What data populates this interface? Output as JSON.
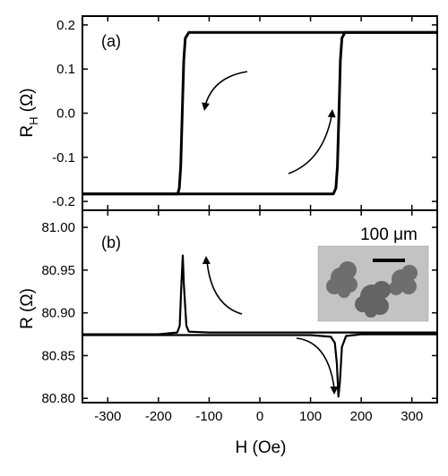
{
  "chart_data": [
    {
      "type": "line",
      "panel_label": "(a)",
      "ylabel": "R",
      "ylabel_sub": "H",
      "ylabel_unit": " (Ω)",
      "xlim": [
        -350,
        350
      ],
      "ylim": [
        -0.22,
        0.22
      ],
      "yticks": [
        -0.2,
        -0.1,
        0.0,
        0.1,
        0.2
      ],
      "ytick_labels": [
        "-0.2",
        "-0.1",
        "0.0",
        "0.1",
        "0.2"
      ],
      "grid": false,
      "series": [
        {
          "values_desc": "descending sweep",
          "x": [
            350,
            -140,
            -147,
            -150,
            -153,
            -156,
            -159,
            -162,
            -350
          ],
          "y": [
            0.183,
            0.183,
            0.17,
            0.12,
            0.0,
            -0.12,
            -0.17,
            -0.183,
            -0.183
          ]
        },
        {
          "values_desc": "ascending sweep",
          "x": [
            -350,
            145,
            150,
            153,
            156,
            159,
            162,
            168,
            350
          ],
          "y": [
            -0.183,
            -0.183,
            -0.17,
            -0.12,
            0.0,
            0.12,
            0.17,
            0.183,
            0.183
          ]
        }
      ]
    },
    {
      "type": "line",
      "panel_label": "(b)",
      "xlabel": "H (Oe)",
      "ylabel": "R (Ω)",
      "xlim": [
        -350,
        350
      ],
      "ylim": [
        80.795,
        81.02
      ],
      "xticks": [
        -300,
        -200,
        -100,
        0,
        100,
        200,
        300
      ],
      "xtick_labels": [
        "-300",
        "-200",
        "-100",
        "0",
        "100",
        "200",
        "300"
      ],
      "yticks": [
        80.8,
        80.85,
        80.9,
        80.95,
        81.0
      ],
      "ytick_labels": [
        "80.80",
        "80.85",
        "80.90",
        "80.95",
        "81.00"
      ],
      "grid": false,
      "inset_scale_label": "100 μm",
      "series": [
        {
          "x": [
            350,
            200,
            0,
            -100,
            -140,
            -145,
            -150,
            -152,
            -155,
            -158,
            -163,
            -200,
            -350
          ],
          "y": [
            80.877,
            80.877,
            80.877,
            80.877,
            80.878,
            80.885,
            80.935,
            80.967,
            80.93,
            80.885,
            80.877,
            80.875,
            80.875
          ]
        },
        {
          "x": [
            -350,
            -200,
            0,
            100,
            140,
            148,
            152,
            155,
            158,
            162,
            170,
            200,
            350
          ],
          "y": [
            80.874,
            80.874,
            80.874,
            80.874,
            80.872,
            80.865,
            80.84,
            80.802,
            80.82,
            80.86,
            80.873,
            80.875,
            80.875
          ]
        }
      ]
    }
  ]
}
